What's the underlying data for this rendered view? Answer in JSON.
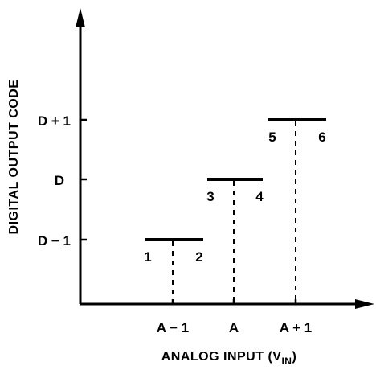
{
  "y_axis": {
    "title": "DIGITAL OUTPUT CODE",
    "ticks": [
      "D + 1",
      "D",
      "D − 1"
    ]
  },
  "x_axis": {
    "title_main": "ANALOG INPUT (V",
    "title_sub": "IN",
    "title_close": ")",
    "ticks": [
      "A − 1",
      "A",
      "A + 1"
    ]
  },
  "steps": [
    {
      "code": "D − 1",
      "input": "A − 1",
      "left_label": "1",
      "right_label": "2"
    },
    {
      "code": "D",
      "input": "A",
      "left_label": "3",
      "right_label": "4"
    },
    {
      "code": "D + 1",
      "input": "A + 1",
      "left_label": "5",
      "right_label": "6"
    }
  ],
  "colors": {
    "ink": "#000000",
    "background": "#ffffff"
  }
}
